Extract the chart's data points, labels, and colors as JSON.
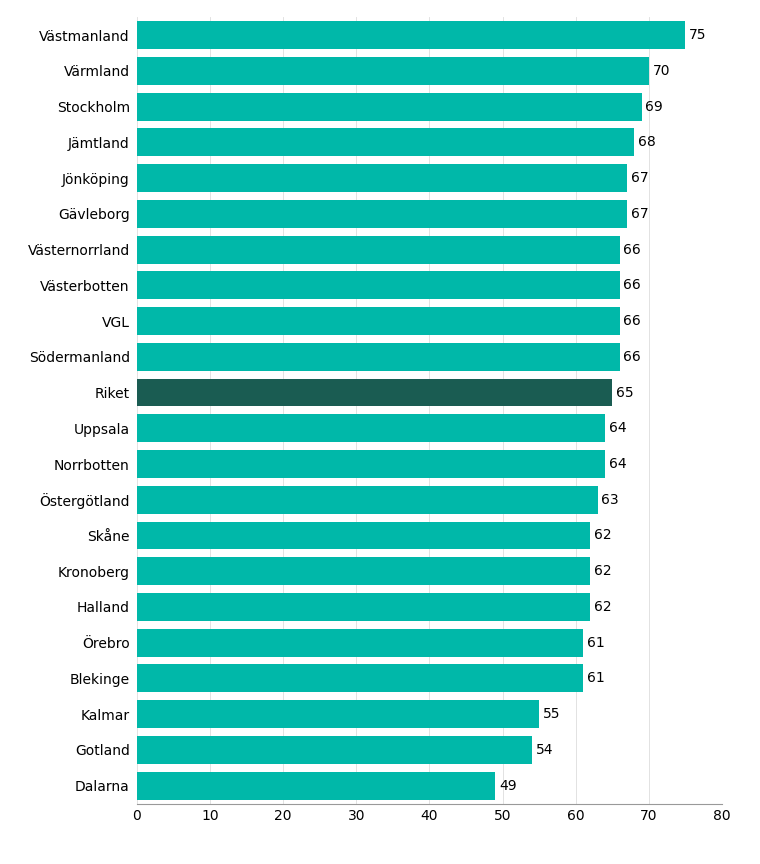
{
  "categories": [
    "Västmanland",
    "Värmland",
    "Stockholm",
    "Jämtland",
    "Jönköping",
    "Gävleborg",
    "Västernorrland",
    "Västerbotten",
    "VGL",
    "Södermanland",
    "Riket",
    "Uppsala",
    "Norrbotten",
    "Östergötland",
    "Skåne",
    "Kronoberg",
    "Halland",
    "Örebro",
    "Blekinge",
    "Kalmar",
    "Gotland",
    "Dalarna"
  ],
  "values": [
    75,
    70,
    69,
    68,
    67,
    67,
    66,
    66,
    66,
    66,
    65,
    64,
    64,
    63,
    62,
    62,
    62,
    61,
    61,
    55,
    54,
    49
  ],
  "bar_color_default": "#00B8A9",
  "bar_color_riket": "#1A5C52",
  "xlim": [
    0,
    80
  ],
  "xticks": [
    0,
    10,
    20,
    30,
    40,
    50,
    60,
    70,
    80
  ],
  "background_color": "#ffffff",
  "label_fontsize": 10,
  "tick_fontsize": 10,
  "value_label_fontsize": 10,
  "bar_height": 0.78
}
